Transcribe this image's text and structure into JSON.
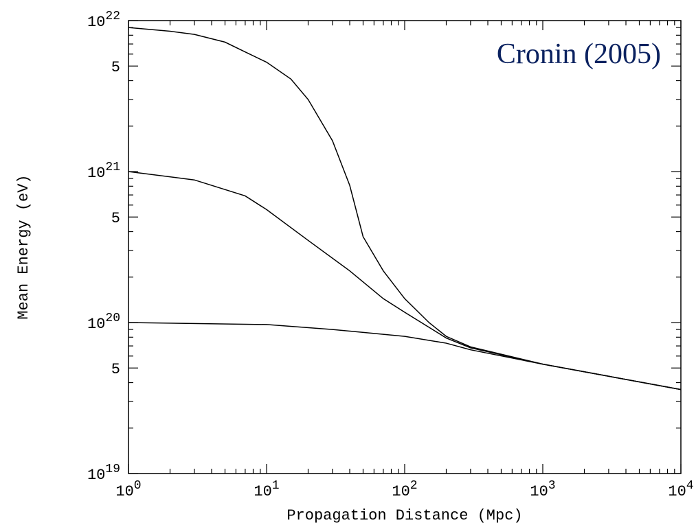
{
  "chart_data": {
    "type": "line",
    "annotation": "Cronin (2005)",
    "x_label": "Propagation Distance (Mpc)",
    "y_label": "Mean Energy (eV)",
    "log_x": true,
    "log_y": true,
    "xlim": [
      1,
      10000
    ],
    "ylim": [
      1e+19,
      1e+22
    ],
    "xticks": [
      {
        "value": 1,
        "label": "10^0"
      },
      {
        "value": 10,
        "label": "10^1"
      },
      {
        "value": 100,
        "label": "10^2"
      },
      {
        "value": 1000,
        "label": "10^3"
      },
      {
        "value": 10000,
        "label": "10^4"
      }
    ],
    "yticks": [
      {
        "value": 1e+19,
        "label": "10^19"
      },
      {
        "value": 5e+19,
        "label": "5"
      },
      {
        "value": 1e+20,
        "label": "10^20"
      },
      {
        "value": 5e+20,
        "label": "5"
      },
      {
        "value": 1e+21,
        "label": "10^21"
      },
      {
        "value": 5e+21,
        "label": "5"
      },
      {
        "value": 1e+22,
        "label": "10^22"
      }
    ],
    "xminorticks": [
      2,
      3,
      4,
      5,
      6,
      7,
      8,
      9,
      20,
      30,
      40,
      50,
      60,
      70,
      80,
      90,
      200,
      300,
      400,
      500,
      600,
      700,
      800,
      900,
      2000,
      3000,
      4000,
      5000,
      6000,
      7000,
      8000,
      9000
    ],
    "yminorticks": [
      2e+19,
      3e+19,
      4e+19,
      6e+19,
      7e+19,
      8e+19,
      9e+19,
      2e+20,
      3e+20,
      4e+20,
      6e+20,
      7e+20,
      8e+20,
      9e+20,
      2e+21,
      3e+21,
      4e+21,
      6e+21,
      7e+21,
      8e+21,
      9e+21
    ],
    "series": [
      {
        "color": "#000000",
        "x": [
          1,
          2,
          3,
          5,
          7,
          10,
          15,
          20,
          30,
          40,
          50,
          70,
          100,
          150,
          200,
          300,
          1000,
          10000
        ],
        "values": [
          9e+21,
          8.5e+21,
          8.1e+21,
          7.2e+21,
          6.2e+21,
          5.3e+21,
          4.1e+21,
          3e+21,
          1.6e+21,
          8.1e+20,
          3.7e+20,
          2.2e+20,
          1.44e+20,
          1e+20,
          8.1e+19,
          6.9e+19,
          5.3e+19,
          3.6e+19
        ]
      },
      {
        "color": "#000000",
        "x": [
          1,
          3,
          7,
          10,
          20,
          40,
          70,
          100,
          200,
          300,
          1000,
          10000
        ],
        "values": [
          1e+21,
          8.8e+20,
          6.9e+20,
          5.6e+20,
          3.5e+20,
          2.2e+20,
          1.44e+20,
          1.17e+20,
          7.9e+19,
          6.8e+19,
          5.3e+19,
          3.6e+19
        ]
      },
      {
        "color": "#000000",
        "x": [
          1,
          10,
          30,
          100,
          200,
          300,
          1000,
          10000
        ],
        "values": [
          1e+20,
          9.7e+19,
          9e+19,
          8.1e+19,
          7.3e+19,
          6.6e+19,
          5.3e+19,
          3.6e+19
        ]
      }
    ]
  }
}
